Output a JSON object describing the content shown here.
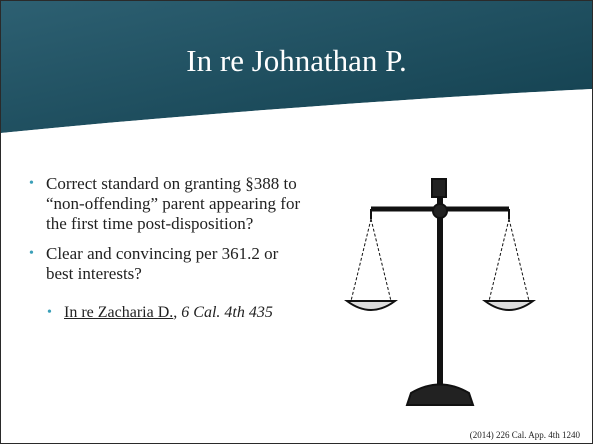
{
  "slide": {
    "title": "In re Johnathan P.",
    "bullets": [
      {
        "text": "Correct standard on granting §388 to “non-offending” parent appearing for the first time post-disposition?"
      },
      {
        "text": "Clear and convincing per 361.2 or best interests?"
      }
    ],
    "sub_bullet": [
      {
        "text": "In re Zacharia D.",
        "style": "underline"
      },
      {
        "text": ", ",
        "style": "normal"
      },
      {
        "text": "6 Cal. 4th 435",
        "style": "italic"
      }
    ],
    "citation": "(2014) 226 Cal. App. 4th 1240"
  }
}
